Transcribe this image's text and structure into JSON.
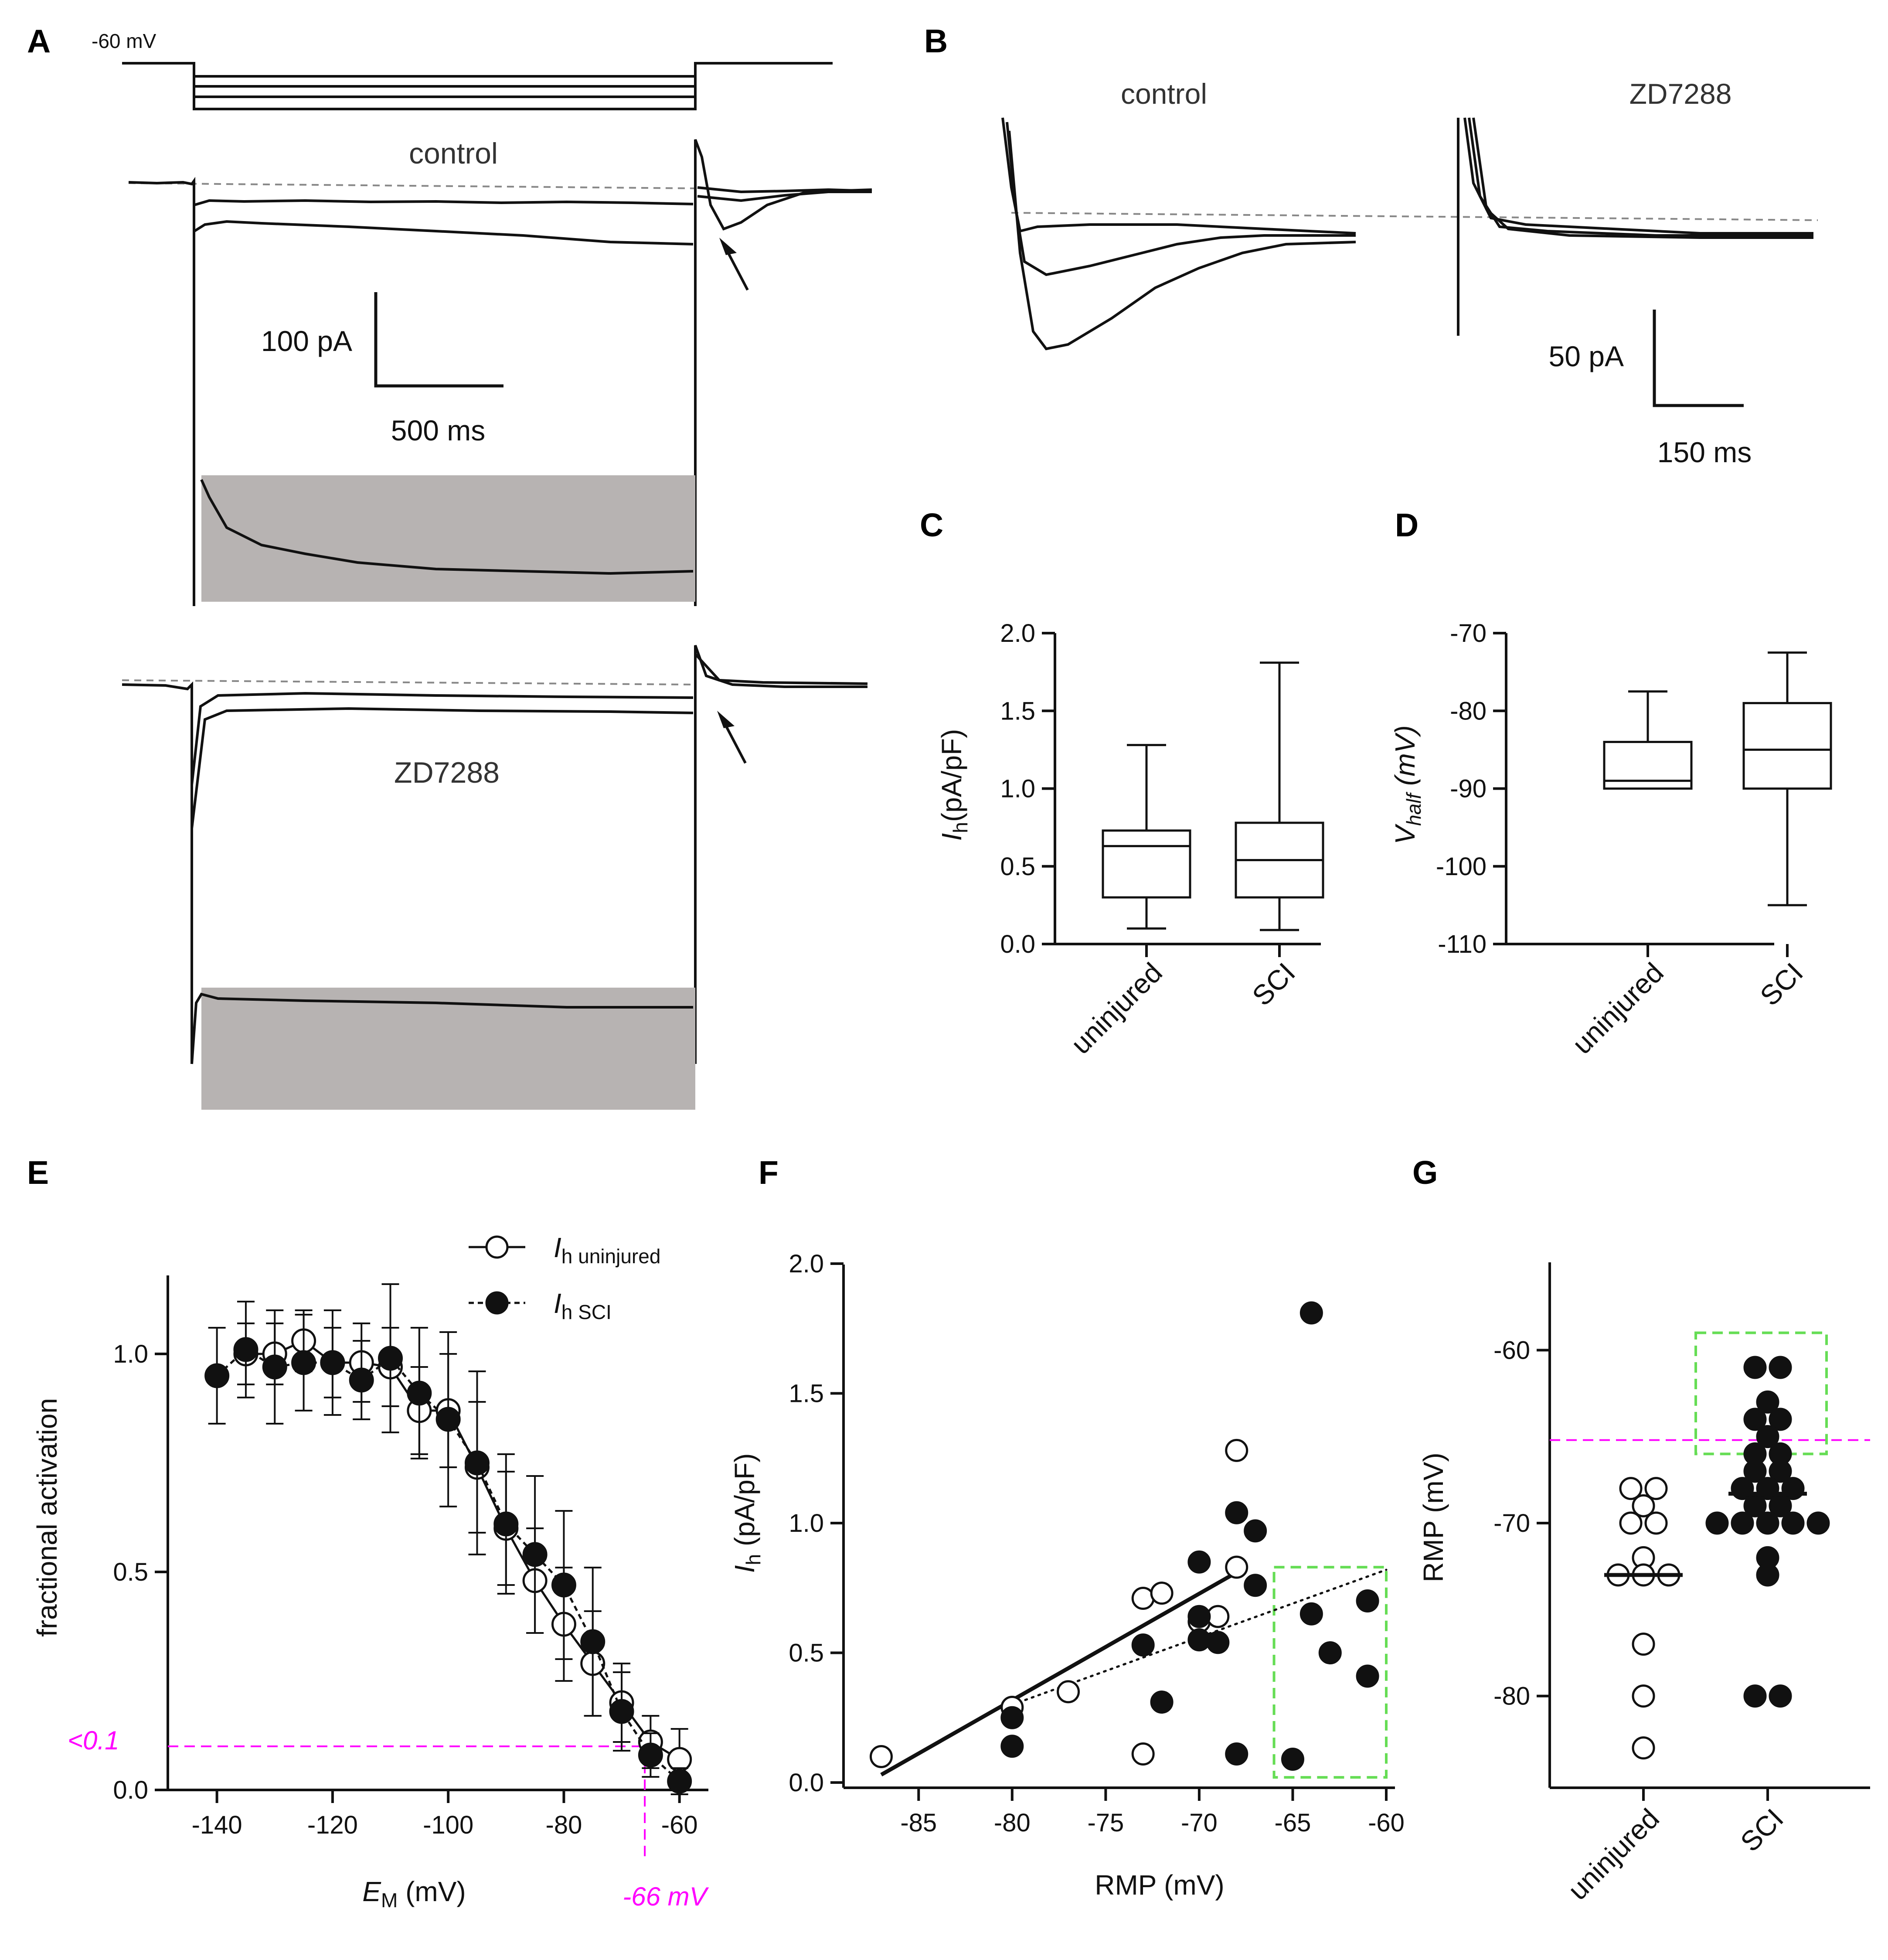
{
  "panels": {
    "A": {
      "label": "A",
      "holding": "-60 mV",
      "control_label": "control",
      "drug_label": "ZD7288",
      "scale_y": "100 pA",
      "scale_x": "500 ms"
    },
    "B": {
      "label": "B",
      "control_label": "control",
      "drug_label": "ZD7288",
      "scale_y": "50 pA",
      "scale_x": "150 ms"
    },
    "C": {
      "label": "C"
    },
    "D": {
      "label": "D"
    },
    "E": {
      "label": "E",
      "threshold_label": "<0.1",
      "vline_label": "-66 mV",
      "legend": [
        "h uninjured",
        "h SCI"
      ],
      "ylabel": "fractional activation",
      "xlabel_sub": "M",
      "xlabel_rest": " (mV)"
    },
    "F": {
      "label": "F",
      "xlabel": "RMP  (mV)"
    },
    "G": {
      "label": "G",
      "ylabel": "RMP (mV)"
    }
  },
  "colors": {
    "threshold": "#ff00ff",
    "highlight_box": "#66dd55",
    "trace": "#111111",
    "shade": "#b7b3b2"
  },
  "chart_data": [
    {
      "panel": "C",
      "type": "box",
      "ylabel_sub": "h",
      "ylabel_rest": "(pA/pF)",
      "categories": [
        "uninjured",
        "SCI"
      ],
      "ylim": [
        0,
        2.0
      ],
      "yticks": [
        "0.0",
        "0.5",
        "1.0",
        "1.5",
        "2.0"
      ],
      "boxes": [
        {
          "category": "uninjured",
          "min": 0.1,
          "q1": 0.3,
          "median": 0.63,
          "q3": 0.73,
          "max": 1.28
        },
        {
          "category": "SCI",
          "min": 0.09,
          "q1": 0.3,
          "median": 0.54,
          "q3": 0.78,
          "max": 1.81
        }
      ]
    },
    {
      "panel": "D",
      "type": "box",
      "ylabel_sub": "half",
      "ylabel_rest": " (mV)",
      "categories": [
        "uninjured",
        "SCI"
      ],
      "ylim": [
        -110,
        -70
      ],
      "yticks": [
        "-110",
        "-100",
        "-90",
        "-80",
        "-70"
      ],
      "boxes": [
        {
          "category": "uninjured",
          "min": -90,
          "q1": -90,
          "median": -89,
          "q3": -84,
          "max": -77.5
        },
        {
          "category": "SCI",
          "min": -105,
          "q1": -90,
          "median": -85,
          "q3": -79,
          "max": -72.5
        }
      ]
    },
    {
      "panel": "E",
      "type": "line",
      "xlim": [
        -150,
        -55
      ],
      "ylim": [
        0,
        1.2
      ],
      "xticks": [
        "-140",
        "-120",
        "-100",
        "-80",
        "-60"
      ],
      "yticks": [
        "0.0",
        "0.5",
        "1.0"
      ],
      "series": [
        {
          "name": "h uninjured",
          "x": [
            -135,
            -130,
            -125,
            -120,
            -115,
            -110,
            -105,
            -100,
            -95,
            -90,
            -85,
            -80,
            -75,
            -70,
            -65,
            -60
          ],
          "y": [
            1.0,
            1.0,
            1.03,
            0.98,
            0.98,
            0.97,
            0.87,
            0.87,
            0.74,
            0.6,
            0.48,
            0.38,
            0.29,
            0.2,
            0.11,
            0.07
          ],
          "err": [
            0.07,
            0.07,
            0.07,
            0.08,
            0.09,
            0.09,
            0.1,
            0.13,
            0.15,
            0.13,
            0.12,
            0.13,
            0.12,
            0.09,
            0.06,
            0.07
          ]
        },
        {
          "name": "h SCI",
          "x": [
            -140,
            -135,
            -130,
            -125,
            -120,
            -115,
            -110,
            -105,
            -100,
            -95,
            -90,
            -85,
            -80,
            -75,
            -70,
            -65,
            -60
          ],
          "y": [
            0.95,
            1.01,
            0.97,
            0.98,
            0.98,
            0.94,
            0.99,
            0.91,
            0.85,
            0.75,
            0.61,
            0.54,
            0.47,
            0.34,
            0.18,
            0.08,
            0.02
          ],
          "err": [
            0.11,
            0.11,
            0.13,
            0.11,
            0.12,
            0.09,
            0.17,
            0.15,
            0.2,
            0.21,
            0.16,
            0.18,
            0.17,
            0.17,
            0.09,
            0.05,
            0.03
          ]
        }
      ],
      "threshold_y": 0.1,
      "threshold_x": -66
    },
    {
      "panel": "F",
      "type": "scatter",
      "ylabel_sub": "h",
      "ylabel_rest": " (pA/pF)",
      "xlim": [
        -87,
        -60
      ],
      "ylim": [
        0,
        2.0
      ],
      "xticks": [
        "-85",
        "-80",
        "-75",
        "-70",
        "-65",
        "-60"
      ],
      "yticks": [
        "0.0",
        "0.5",
        "1.0",
        "1.5",
        "2.0"
      ],
      "series": [
        {
          "name": "uninjured",
          "x": [
            -87,
            -80,
            -77,
            -73,
            -72,
            -70,
            -69,
            -68,
            -68,
            -73
          ],
          "y": [
            0.1,
            0.29,
            0.35,
            0.71,
            0.73,
            0.62,
            0.64,
            0.83,
            1.28,
            0.11
          ]
        },
        {
          "name": "SCI",
          "x": [
            -80,
            -80,
            -73,
            -72,
            -70,
            -70,
            -70,
            -69,
            -68,
            -68,
            -67,
            -67,
            -65,
            -64,
            -64,
            -63,
            -61,
            -61
          ],
          "y": [
            0.14,
            0.25,
            0.53,
            0.31,
            0.85,
            0.64,
            0.55,
            0.54,
            1.04,
            0.11,
            0.97,
            0.76,
            0.09,
            1.81,
            0.65,
            0.5,
            0.7,
            0.41
          ]
        }
      ],
      "fits": [
        {
          "name": "uninjured fit",
          "x": [
            -87,
            -68
          ],
          "y": [
            0.03,
            0.81
          ]
        },
        {
          "name": "SCI fit",
          "x": [
            -80,
            -60
          ],
          "y": [
            0.3,
            0.82
          ]
        }
      ],
      "box": {
        "x": [
          -66,
          -60
        ],
        "y": [
          0.02,
          0.83
        ]
      }
    },
    {
      "panel": "G",
      "type": "scatter",
      "categories": [
        "uninjured",
        "SCI"
      ],
      "ylim": [
        -85,
        -55
      ],
      "yticks": [
        "-80",
        "-70",
        "-60"
      ],
      "series": [
        {
          "name": "uninjured",
          "values": [
            -68,
            -68,
            -69,
            -70,
            -70,
            -72,
            -73,
            -73,
            -73,
            -77,
            -80,
            -83
          ],
          "median": -73
        },
        {
          "name": "SCI",
          "values": [
            -61,
            -61,
            -63,
            -64,
            -64,
            -65,
            -66,
            -66,
            -67,
            -67,
            -68,
            -68,
            -68,
            -69,
            -69,
            -70,
            -70,
            -70,
            -70,
            -70,
            -72,
            -73,
            -80,
            -80
          ],
          "median": -68.3
        }
      ],
      "threshold_y": -65.2,
      "box": {
        "y": [
          -66,
          -59
        ]
      }
    }
  ]
}
